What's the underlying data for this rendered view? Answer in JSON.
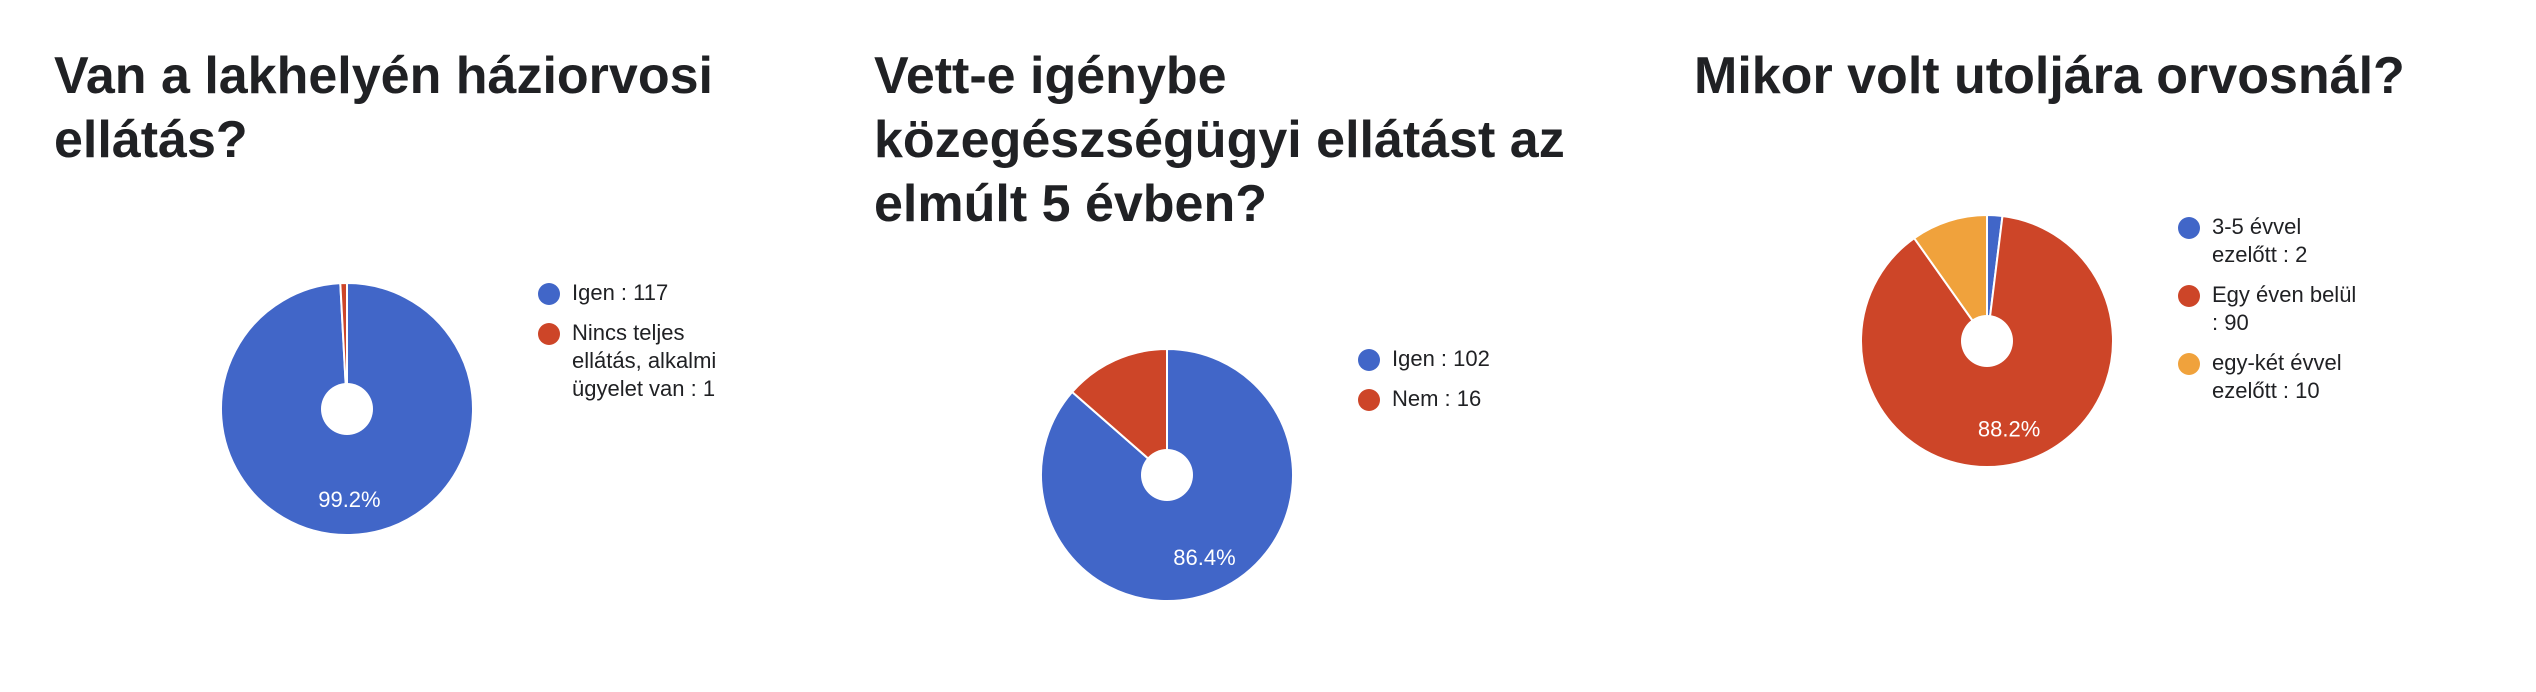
{
  "colors": {
    "blue": "#4166c8",
    "red": "#cd4528",
    "orange": "#f0a23c"
  },
  "chart_data": [
    {
      "type": "pie",
      "title": "Van a lakhelyén háziorvosi ellátás?",
      "donut_hole": true,
      "legend_position": "right",
      "slices": [
        {
          "label": "Igen",
          "value": 117,
          "legend": "Igen : 117",
          "color": "#4166c8",
          "percent_label": "99.2%"
        },
        {
          "label": "Nincs teljes ellátás, alkalmi ügyelet van",
          "value": 1,
          "legend": "Nincs teljes ellátás, alkalmi ügyelet van : 1",
          "color": "#cd4528",
          "percent_label": ""
        }
      ]
    },
    {
      "type": "pie",
      "title": "Vett-e igénybe közegészségügyi ellátást az elmúlt 5 évben?",
      "donut_hole": true,
      "legend_position": "right",
      "slices": [
        {
          "label": "Igen",
          "value": 102,
          "legend": "Igen : 102",
          "color": "#4166c8",
          "percent_label": "86.4%"
        },
        {
          "label": "Nem",
          "value": 16,
          "legend": "Nem : 16",
          "color": "#cd4528",
          "percent_label": ""
        }
      ]
    },
    {
      "type": "pie",
      "title": "Mikor volt utoljára orvosnál?",
      "donut_hole": true,
      "legend_position": "right",
      "slices": [
        {
          "label": "3-5 évvel ezelőtt",
          "value": 2,
          "legend": "3-5 évvel ezelőtt : 2",
          "color": "#4166c8",
          "percent_label": ""
        },
        {
          "label": "Egy éven belül",
          "value": 90,
          "legend": "Egy éven belül : 90",
          "color": "#cd4528",
          "percent_label": "88.2%"
        },
        {
          "label": "egy-két évvel ezelőtt",
          "value": 10,
          "legend": "egy-két évvel ezelőtt : 10",
          "color": "#f0a23c",
          "percent_label": ""
        }
      ]
    }
  ]
}
